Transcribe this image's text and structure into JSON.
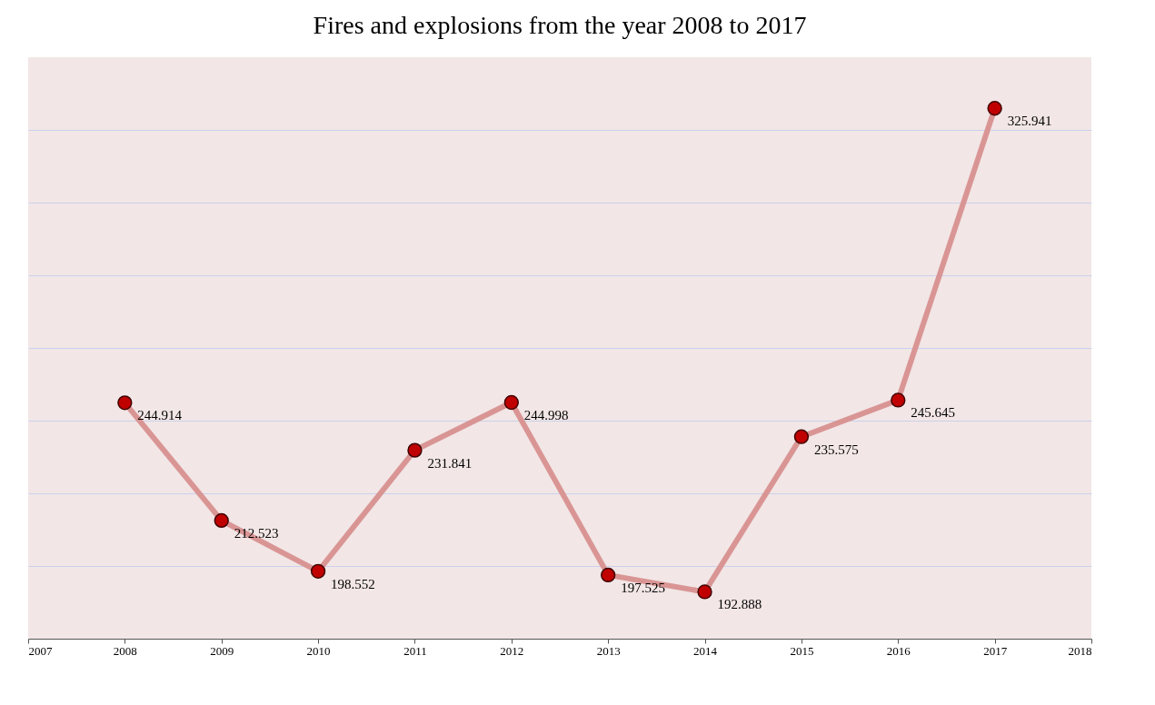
{
  "chart_data": {
    "type": "line",
    "title": "Fires and explosions from the year 2008 to 2017",
    "x": [
      2008,
      2009,
      2010,
      2011,
      2012,
      2013,
      2014,
      2015,
      2016,
      2017
    ],
    "series": [
      {
        "color": "#d99594",
        "colors": [
          "#c00000",
          "#c00000",
          "#c00000",
          "#c00000",
          "#c00000",
          "#c00000",
          "#c00000",
          "#c00000",
          "#c00000",
          "#c00000"
        ],
        "values": [
          244.914,
          212.523,
          198.552,
          231.841,
          244.998,
          197.525,
          192.888,
          235.575,
          245.645,
          325.941
        ]
      }
    ],
    "xlim": [
      2007,
      2018
    ],
    "xticks": [
      2007,
      2008,
      2009,
      2010,
      2011,
      2012,
      2013,
      2014,
      2015,
      2016,
      2017,
      2018
    ],
    "ylim": [
      180,
      340
    ],
    "yticks": [
      {
        "value": 180,
        "label": null
      },
      {
        "value": 200,
        "label": null
      },
      {
        "value": 220,
        "label": null
      },
      {
        "value": 240,
        "label": null
      },
      {
        "value": 260,
        "label": null
      },
      {
        "value": 280,
        "label": null
      },
      {
        "value": 300,
        "label": null
      },
      {
        "value": 320,
        "label": null
      }
    ],
    "tick_labels": "x",
    "grid": "y",
    "data_labels": true,
    "marker": "circle",
    "line_style": "solid"
  }
}
